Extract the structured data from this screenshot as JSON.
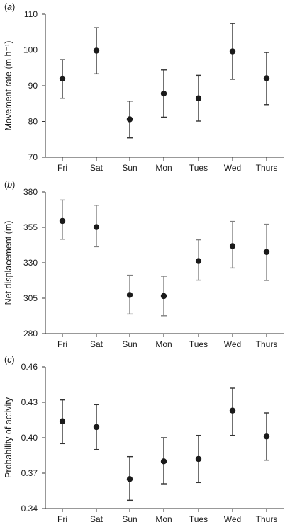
{
  "chart_data": [
    {
      "type": "scatter",
      "panel_label": "(a)",
      "ylabel": "Movement rate (m h⁻¹)",
      "categories": [
        "Fri",
        "Sat",
        "Sun",
        "Mon",
        "Tues",
        "Wed",
        "Thurs"
      ],
      "ylim": [
        70,
        110
      ],
      "yticks": [
        70,
        80,
        90,
        100,
        110
      ],
      "ytick_labels": [
        "70",
        "80",
        "90",
        "100",
        "110"
      ],
      "values": [
        92,
        99.8,
        80.6,
        87.8,
        86.5,
        99.6,
        92.1
      ],
      "err_low": [
        86.5,
        93.3,
        75.4,
        81.2,
        80.1,
        91.8,
        84.7
      ],
      "err_high": [
        97.3,
        106.2,
        85.7,
        94.4,
        92.9,
        107.4,
        99.3
      ],
      "color": "#1a1a1a",
      "error_bar_color": "#333333"
    },
    {
      "type": "scatter",
      "panel_label": "(b)",
      "ylabel": "Net displacement (m)",
      "categories": [
        "Fri",
        "Sat",
        "Sun",
        "Mon",
        "Tues",
        "Wed",
        "Thurs"
      ],
      "ylim": [
        280,
        380
      ],
      "yticks": [
        280,
        305,
        330,
        355,
        380
      ],
      "ytick_labels": [
        "280",
        "305",
        "330",
        "355",
        "380"
      ],
      "values": [
        359.5,
        355.2,
        307.3,
        306.5,
        331.2,
        341.8,
        337.6
      ],
      "err_low": [
        346.6,
        341.3,
        293.8,
        292.6,
        317.7,
        326.3,
        317.5
      ],
      "err_high": [
        374.3,
        370.6,
        321.2,
        320.5,
        346.2,
        359.2,
        357.2
      ],
      "color": "#1a1a1a",
      "error_bar_color": "#808080"
    },
    {
      "type": "scatter",
      "panel_label": "(c)",
      "ylabel": "Probability of activity",
      "categories": [
        "Fri",
        "Sat",
        "Sun",
        "Mon",
        "Tues",
        "Wed",
        "Thurs"
      ],
      "ylim": [
        0.34,
        0.46
      ],
      "yticks": [
        0.34,
        0.37,
        0.4,
        0.43,
        0.46
      ],
      "ytick_labels": [
        "0.34",
        "0.37",
        "0.40",
        "0.43",
        "0.46"
      ],
      "values": [
        0.414,
        0.409,
        0.365,
        0.38,
        0.382,
        0.423,
        0.401
      ],
      "err_low": [
        0.395,
        0.39,
        0.347,
        0.361,
        0.362,
        0.402,
        0.381
      ],
      "err_high": [
        0.432,
        0.428,
        0.384,
        0.4,
        0.402,
        0.442,
        0.421
      ],
      "color": "#1a1a1a",
      "error_bar_color": "#333333"
    }
  ]
}
